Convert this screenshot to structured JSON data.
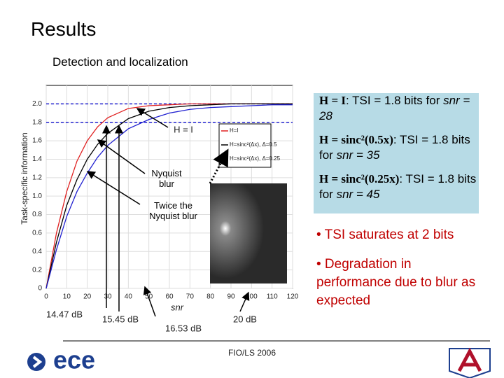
{
  "header": {
    "title": "Results",
    "subtitle": "Detection and localization"
  },
  "chart_data": {
    "type": "line",
    "xlabel": "snr",
    "ylabel": "Task-specific information",
    "x": [
      0,
      5,
      10,
      15,
      20,
      25,
      30,
      40,
      50,
      60,
      70,
      80,
      90,
      100,
      110,
      120
    ],
    "series": [
      {
        "name": "H=I",
        "color": "#e02020",
        "values": [
          0,
          0.6,
          1.05,
          1.38,
          1.6,
          1.75,
          1.85,
          1.95,
          1.98,
          1.99,
          2,
          2,
          2,
          2,
          2,
          2
        ]
      },
      {
        "name": "H=sinc²(Δx), Δ=0.5",
        "color": "#000000",
        "values": [
          0,
          0.5,
          0.9,
          1.18,
          1.4,
          1.56,
          1.68,
          1.84,
          1.92,
          1.96,
          1.98,
          1.99,
          2,
          2,
          2,
          2
        ]
      },
      {
        "name": "H=sinc²(Δx), Δ=0.25",
        "color": "#2020d0",
        "values": [
          0,
          0.42,
          0.78,
          1.05,
          1.25,
          1.42,
          1.55,
          1.73,
          1.83,
          1.9,
          1.94,
          1.96,
          1.97,
          1.98,
          1.99,
          1.99
        ]
      }
    ],
    "hlines": [
      1.8,
      2
    ],
    "hline_color": "#2020d0",
    "xlim": [
      0,
      120
    ],
    "xticks": [
      0,
      10,
      20,
      30,
      40,
      50,
      60,
      70,
      80,
      90,
      100,
      110,
      120
    ],
    "ylim": [
      0,
      2.2
    ],
    "yticks": [
      0,
      0.2,
      0.4,
      0.6,
      0.8,
      {
        "value": 1,
        "label": "1.0"
      },
      1.2,
      1.4,
      1.6,
      1.8,
      {
        "value": 2,
        "label": "2.0"
      }
    ],
    "grid": true,
    "legend": "upper right"
  },
  "annotations": {
    "h_i": "H = I",
    "nyquist": "Nyquist blur",
    "twice": "Twice the Nyquist blur",
    "db1": "14.47 dB",
    "db2": "15.45 dB",
    "db3": "16.53 dB",
    "db4": "20 dB"
  },
  "box": [
    {
      "lead": "H = I",
      "text": ": TSI = 1.8 bits for ",
      "em": "snr = 28"
    },
    {
      "lead": "H = sinc²(0.5x)",
      "text": ": TSI = 1.8 bits for ",
      "em": "snr = 35"
    },
    {
      "lead": "H = sinc²(0.25x)",
      "text": ": TSI = 1.8 bits for ",
      "em": "snr = 45"
    }
  ],
  "bullets": [
    "• TSI saturates at 2 bits",
    "• Degradation in performance due to blur as expected"
  ],
  "footer": {
    "logo": "ece",
    "credit": "FIO/LS 2006"
  }
}
